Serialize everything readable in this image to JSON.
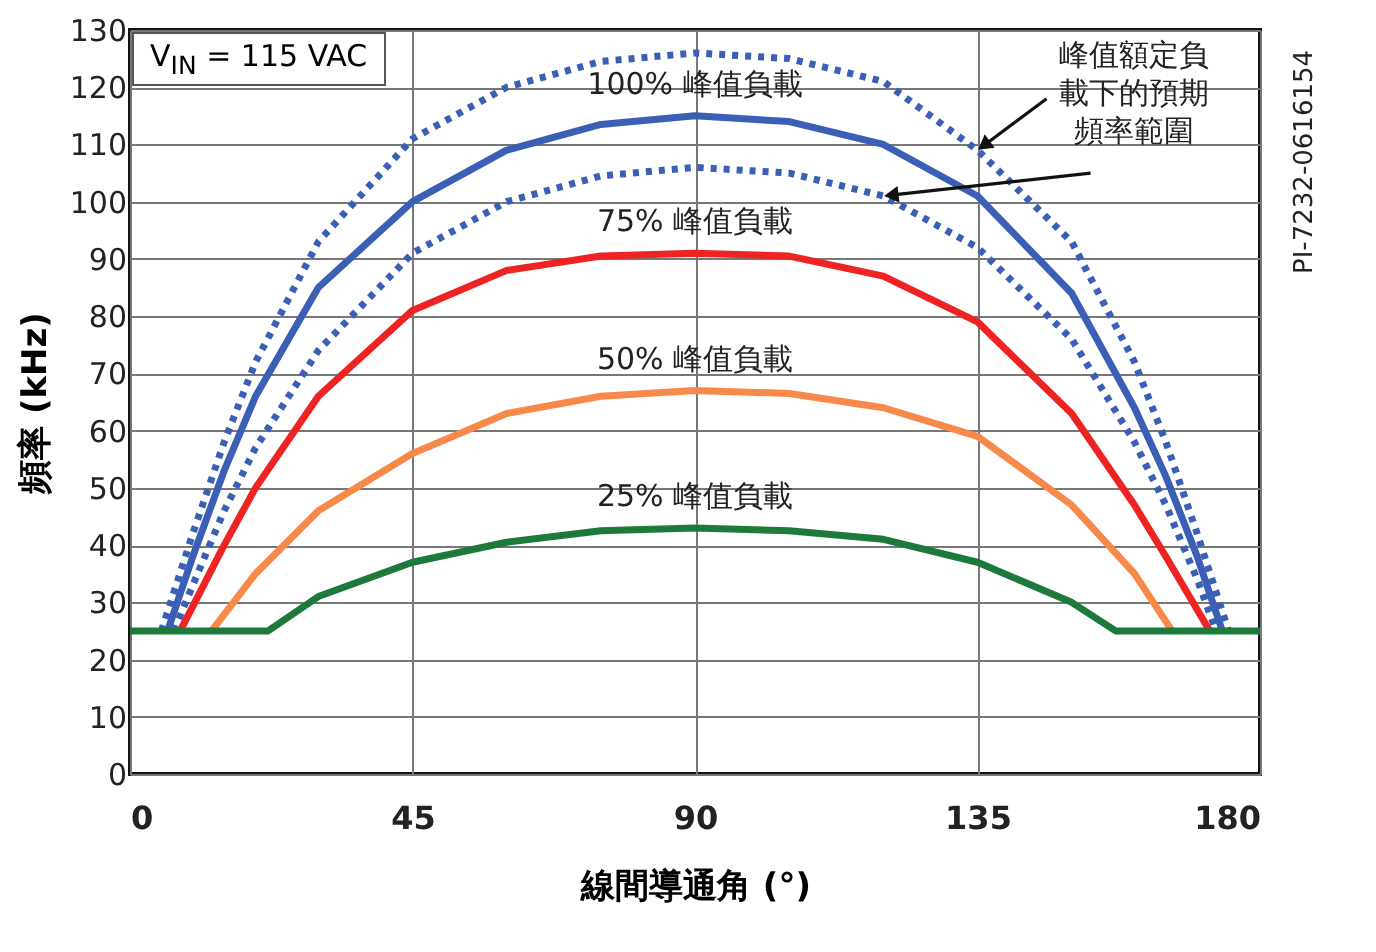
{
  "chart_data": {
    "type": "line",
    "xlabel": "線間導通角 (°)",
    "ylabel": "頻率 (kHz)",
    "xlim": [
      0,
      180
    ],
    "xticks": [
      0,
      45,
      90,
      135,
      180
    ],
    "ylim": [
      0,
      130
    ],
    "yticks": [
      0,
      10,
      20,
      30,
      40,
      50,
      60,
      70,
      80,
      90,
      100,
      110,
      120,
      130
    ],
    "grid": true,
    "marker": "none",
    "line_style": "solid",
    "annotations": [
      "V$_{IN}$ = 115 VAC",
      {
        "text": "峰值額定負載下的預期頻率範圍",
        "x": 135,
        "y": 109
      },
      "PI-7232-0616154"
    ],
    "series": [
      {
        "color": "#3a5fb5",
        "line_style": "dotted",
        "x": [
          5,
          10,
          15,
          20,
          30,
          45,
          60,
          75,
          90,
          105,
          120,
          135,
          150,
          160,
          165,
          170,
          175
        ],
        "values": [
          25,
          42,
          58,
          72,
          93,
          111,
          120,
          124.5,
          126,
          125,
          121,
          109,
          93,
          72,
          58,
          42,
          25
        ]
      },
      {
        "color": "#3a5fb5",
        "line_style": "dotted",
        "x": [
          7,
          10,
          15,
          20,
          30,
          45,
          60,
          75,
          90,
          105,
          120,
          135,
          150,
          160,
          165,
          170,
          173
        ],
        "values": [
          25,
          33,
          46,
          57,
          74,
          91,
          100,
          104.5,
          106,
          105,
          101,
          92,
          76,
          58,
          47,
          34,
          25
        ]
      },
      {
        "name": "100% 峰值負載",
        "color": "#3a5fb5",
        "x": [
          6,
          10,
          15,
          20,
          30,
          45,
          60,
          75,
          90,
          105,
          120,
          135,
          150,
          160,
          165,
          170,
          174
        ],
        "values": [
          25,
          38,
          53,
          66,
          85,
          100,
          109,
          113.5,
          115,
          114,
          110,
          101,
          84,
          64,
          52,
          38,
          25
        ]
      },
      {
        "name": "75% 峰值負載",
        "color": "#ee2324",
        "x": [
          8,
          15,
          20,
          30,
          45,
          60,
          75,
          90,
          105,
          120,
          135,
          150,
          160,
          165,
          172
        ],
        "values": [
          25,
          40,
          50,
          66,
          81,
          88,
          90.5,
          91,
          90.5,
          87,
          79,
          63,
          47,
          38,
          25
        ]
      },
      {
        "name": "50% 峰值負載",
        "color": "#f7894a",
        "x": [
          13,
          20,
          30,
          45,
          60,
          75,
          90,
          105,
          120,
          135,
          150,
          160,
          166
        ],
        "values": [
          25,
          35,
          46,
          56,
          63,
          66,
          67,
          66.5,
          64,
          59,
          47,
          35,
          25
        ]
      },
      {
        "name": "25% 峰值負載",
        "color": "#1e7a3a",
        "x": [
          0,
          22,
          30,
          45,
          60,
          75,
          90,
          105,
          120,
          135,
          150,
          157,
          180
        ],
        "values": [
          25,
          25,
          31,
          37,
          40.5,
          42.5,
          43,
          42.5,
          41,
          37,
          30,
          25,
          25
        ]
      }
    ]
  }
}
